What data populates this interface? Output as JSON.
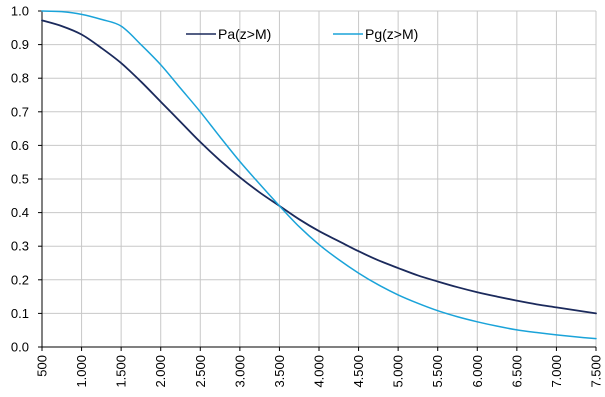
{
  "chart_data": {
    "type": "line",
    "x": [
      500,
      750,
      1000,
      1250,
      1500,
      1750,
      2000,
      2250,
      2500,
      2750,
      3000,
      3250,
      3500,
      3750,
      4000,
      4250,
      4500,
      4750,
      5000,
      5250,
      5500,
      5750,
      6000,
      6250,
      6500,
      6750,
      7000,
      7250,
      7500
    ],
    "xticks": [
      500,
      1000,
      1500,
      2000,
      2500,
      3000,
      3500,
      4000,
      4500,
      5000,
      5500,
      6000,
      6500,
      7000,
      7500
    ],
    "xtick_labels": [
      "500",
      "1.000",
      "1.500",
      "2.000",
      "2.500",
      "3.000",
      "3.500",
      "4.000",
      "4.500",
      "5.000",
      "5.500",
      "6.000",
      "6.500",
      "7.000",
      "7.500"
    ],
    "xlim": [
      500,
      7500
    ],
    "ylim": [
      0,
      1
    ],
    "yticks": [
      0,
      0.1,
      0.2,
      0.3,
      0.4,
      0.5,
      0.6,
      0.7,
      0.8,
      0.9,
      1.0
    ],
    "ytick_labels": [
      "0.0",
      "0.1",
      "0.2",
      "0.3",
      "0.4",
      "0.5",
      "0.6",
      "0.7",
      "0.8",
      "0.9",
      "1.0"
    ],
    "grid": true,
    "legend_position": "top-center",
    "series": [
      {
        "name": "Pa(z>M)",
        "color": "#1b2a5c",
        "values": [
          0.972,
          0.955,
          0.93,
          0.89,
          0.845,
          0.79,
          0.73,
          0.67,
          0.61,
          0.555,
          0.505,
          0.46,
          0.42,
          0.38,
          0.345,
          0.315,
          0.285,
          0.258,
          0.235,
          0.213,
          0.195,
          0.178,
          0.163,
          0.15,
          0.138,
          0.127,
          0.118,
          0.109,
          0.1
        ]
      },
      {
        "name": "Pg(z>M)",
        "color": "#1aa3d9",
        "values": [
          1.0,
          0.998,
          0.99,
          0.975,
          0.955,
          0.9,
          0.84,
          0.77,
          0.7,
          0.625,
          0.552,
          0.485,
          0.42,
          0.358,
          0.305,
          0.26,
          0.22,
          0.185,
          0.155,
          0.13,
          0.108,
          0.09,
          0.075,
          0.062,
          0.051,
          0.043,
          0.036,
          0.03,
          0.025
        ]
      }
    ]
  }
}
